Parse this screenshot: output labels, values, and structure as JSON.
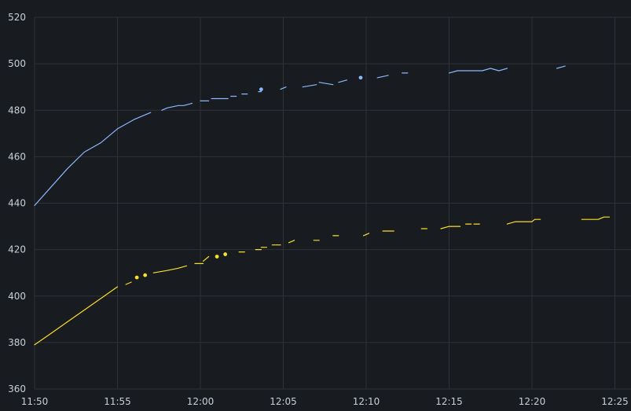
{
  "chart_data": {
    "type": "line",
    "title": "",
    "xlabel": "",
    "ylabel": "",
    "grid": true,
    "legend": "none",
    "xlim": [
      "11:50",
      "12:25"
    ],
    "ylim": [
      360,
      520
    ],
    "x_ticks": [
      "11:50",
      "11:55",
      "12:00",
      "12:05",
      "12:10",
      "12:15",
      "12:20",
      "12:25"
    ],
    "y_ticks": [
      360,
      380,
      400,
      420,
      440,
      460,
      480,
      500,
      520
    ],
    "colors": {
      "background": "#181b1f",
      "grid": "#2f3238",
      "tick_text": "#c7d0d9",
      "series_blue": "#8ab8ff",
      "series_yellow": "#fade2a"
    },
    "series": [
      {
        "color": "#8ab8ff",
        "segments": [
          [
            [
              "11:50",
              439
            ],
            [
              "11:51",
              447
            ],
            [
              "11:52",
              455
            ],
            [
              "11:53",
              462
            ],
            [
              "11:54",
              466
            ],
            [
              "11:55",
              472
            ],
            [
              "11:56",
              476
            ],
            [
              "11:57",
              479
            ]
          ],
          [
            [
              "11:57:40",
              480
            ],
            [
              "11:58",
              481
            ],
            [
              "11:58:40",
              482
            ],
            [
              "11:59",
              482
            ],
            [
              "11:59:30",
              483
            ]
          ],
          [
            [
              "12:00",
              484
            ],
            [
              "12:00:30",
              484
            ]
          ],
          [
            [
              "12:00:40",
              485
            ],
            [
              "12:01:40",
              485
            ]
          ],
          [
            [
              "12:01:50",
              486
            ],
            [
              "12:02:10",
              486
            ]
          ],
          [
            [
              "12:02:30",
              487
            ],
            [
              "12:02:50",
              487
            ]
          ],
          [
            [
              "12:03:30",
              488
            ],
            [
              "12:03:40",
              488
            ]
          ],
          [
            [
              "12:03:40",
              489
            ]
          ],
          [
            [
              "12:04:50",
              489
            ],
            [
              "12:05:10",
              490
            ]
          ],
          [
            [
              "12:06:10",
              490
            ],
            [
              "12:07:00",
              491
            ]
          ],
          [
            [
              "12:07:10",
              492
            ],
            [
              "12:08:00",
              491
            ]
          ],
          [
            [
              "12:08:20",
              492
            ],
            [
              "12:08:50",
              493
            ]
          ],
          [
            [
              "12:09:40",
              494
            ]
          ],
          [
            [
              "12:10:40",
              494
            ],
            [
              "12:11:20",
              495
            ]
          ],
          [
            [
              "12:12:10",
              496
            ],
            [
              "12:12:30",
              496
            ]
          ],
          [
            [
              "12:15:00",
              496
            ],
            [
              "12:15:30",
              497
            ],
            [
              "12:17:00",
              497
            ],
            [
              "12:17:30",
              498
            ],
            [
              "12:18:00",
              497
            ],
            [
              "12:18:30",
              498
            ]
          ],
          [
            [
              "12:21:30",
              498
            ],
            [
              "12:22:00",
              499
            ]
          ]
        ]
      },
      {
        "color": "#fade2a",
        "segments": [
          [
            [
              "11:50",
              379
            ],
            [
              "11:51",
              384
            ],
            [
              "11:52",
              389
            ],
            [
              "11:53",
              394
            ],
            [
              "11:54",
              399
            ],
            [
              "11:55",
              404
            ]
          ],
          [
            [
              "11:55:30",
              405
            ],
            [
              "11:55:50",
              406
            ]
          ],
          [
            [
              "11:56:10",
              408
            ]
          ],
          [
            [
              "11:56:40",
              409
            ]
          ],
          [
            [
              "11:57:10",
              410
            ],
            [
              "11:58:00",
              411
            ],
            [
              "11:58:40",
              412
            ],
            [
              "11:59:10",
              413
            ]
          ],
          [
            [
              "11:59:40",
              414
            ],
            [
              "12:00:10",
              414
            ]
          ],
          [
            [
              "12:00:10",
              415
            ],
            [
              "12:00:30",
              417
            ]
          ],
          [
            [
              "12:01:00",
              417
            ]
          ],
          [
            [
              "12:01:30",
              418
            ]
          ],
          [
            [
              "12:02:20",
              419
            ],
            [
              "12:02:40",
              419
            ]
          ],
          [
            [
              "12:03:20",
              420
            ],
            [
              "12:03:40",
              420
            ]
          ],
          [
            [
              "12:03:40",
              421
            ],
            [
              "12:04:00",
              421
            ]
          ],
          [
            [
              "12:04:20",
              422
            ],
            [
              "12:04:50",
              422
            ]
          ],
          [
            [
              "12:05:20",
              423
            ],
            [
              "12:05:40",
              424
            ]
          ],
          [
            [
              "12:06:50",
              424
            ],
            [
              "12:07:10",
              424
            ]
          ],
          [
            [
              "12:08:00",
              426
            ],
            [
              "12:08:20",
              426
            ]
          ],
          [
            [
              "12:09:50",
              426
            ],
            [
              "12:10:10",
              427
            ]
          ],
          [
            [
              "12:11:00",
              428
            ],
            [
              "12:11:40",
              428
            ]
          ],
          [
            [
              "12:13:20",
              429
            ],
            [
              "12:13:40",
              429
            ]
          ],
          [
            [
              "12:14:30",
              429
            ],
            [
              "12:15:00",
              430
            ],
            [
              "12:15:40",
              430
            ]
          ],
          [
            [
              "12:16:00",
              431
            ],
            [
              "12:16:20",
              431
            ]
          ],
          [
            [
              "12:16:30",
              431
            ],
            [
              "12:16:50",
              431
            ]
          ],
          [
            [
              "12:18:30",
              431
            ],
            [
              "12:19:00",
              432
            ],
            [
              "12:20:00",
              432
            ],
            [
              "12:20:10",
              433
            ],
            [
              "12:20:30",
              433
            ]
          ],
          [
            [
              "12:23:00",
              433
            ],
            [
              "12:24:00",
              433
            ],
            [
              "12:24:20",
              434
            ],
            [
              "12:24:40",
              434
            ]
          ]
        ]
      }
    ]
  }
}
